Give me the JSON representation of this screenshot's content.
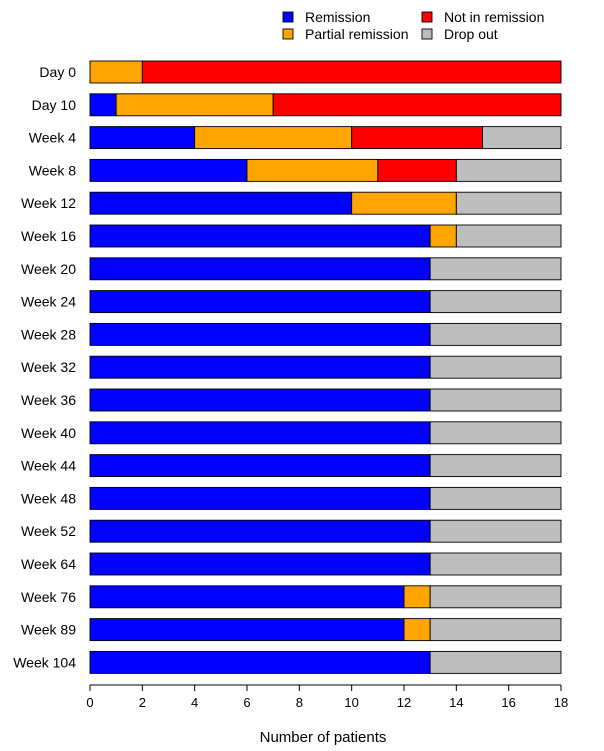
{
  "chart_data": {
    "type": "bar",
    "orientation": "horizontal",
    "stacked": true,
    "title": "",
    "xlabel": "Number of patients",
    "ylabel": "",
    "xlim": [
      0,
      18
    ],
    "xticks": [
      0,
      2,
      4,
      6,
      8,
      10,
      12,
      14,
      16,
      18
    ],
    "grid": false,
    "legend_position": "top",
    "categories": [
      "Day 0",
      "Day 10",
      "Week 4",
      "Week 8",
      "Week 12",
      "Week 16",
      "Week 20",
      "Week 24",
      "Week 28",
      "Week 32",
      "Week 36",
      "Week 40",
      "Week 44",
      "Week 48",
      "Week 52",
      "Week 64",
      "Week 76",
      "Week 89",
      "Week 104"
    ],
    "series": [
      {
        "name": "Remission",
        "color": "#0000ff",
        "values": [
          0,
          1,
          4,
          6,
          10,
          13,
          13,
          13,
          13,
          13,
          13,
          13,
          13,
          13,
          13,
          13,
          12,
          12,
          13
        ]
      },
      {
        "name": "Partial remission",
        "color": "#ffa500",
        "values": [
          2,
          6,
          6,
          5,
          4,
          1,
          0,
          0,
          0,
          0,
          0,
          0,
          0,
          0,
          0,
          0,
          1,
          1,
          0
        ]
      },
      {
        "name": "Not in remission",
        "color": "#ff0000",
        "values": [
          16,
          11,
          5,
          3,
          0,
          0,
          0,
          0,
          0,
          0,
          0,
          0,
          0,
          0,
          0,
          0,
          0,
          0,
          0
        ]
      },
      {
        "name": "Drop out",
        "color": "#bebebe",
        "values": [
          0,
          0,
          3,
          4,
          4,
          4,
          5,
          5,
          5,
          5,
          5,
          5,
          5,
          5,
          5,
          5,
          5,
          5,
          5
        ]
      }
    ],
    "legend_order": [
      "Remission",
      "Not in remission",
      "Partial remission",
      "Drop out"
    ]
  }
}
